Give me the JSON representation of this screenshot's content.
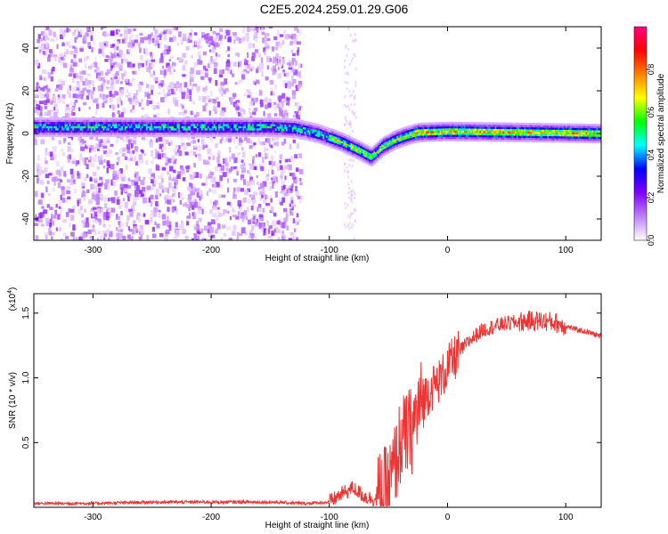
{
  "title": "C2E5.2024.259.01.29.G06",
  "chart_data": [
    {
      "type": "heatmap",
      "xlabel": "Height of straight line (km)",
      "ylabel": "Frequency (Hz)",
      "xlim": [
        -350,
        130
      ],
      "ylim": [
        -50,
        50
      ],
      "x_ticks": [
        -300,
        -200,
        -100,
        0,
        100
      ],
      "y_ticks": [
        -40,
        -20,
        0,
        20,
        40
      ],
      "colorbar": {
        "label": "Normalized spectral amplitude",
        "range": [
          0,
          1
        ],
        "ticks": [
          0.0,
          0.2,
          0.4,
          0.6,
          0.8
        ],
        "colors": [
          "#ffffff",
          "#c080ff",
          "#7f00ff",
          "#0000ff",
          "#00ffff",
          "#00ff00",
          "#ffff00",
          "#ff8000",
          "#ff0000",
          "#ff0080"
        ]
      },
      "ridge": [
        {
          "x": -350,
          "y": 3
        },
        {
          "x": -250,
          "y": 3
        },
        {
          "x": -150,
          "y": 3
        },
        {
          "x": -130,
          "y": 2.5
        },
        {
          "x": -110,
          "y": 0
        },
        {
          "x": -90,
          "y": -4
        },
        {
          "x": -75,
          "y": -8
        },
        {
          "x": -65,
          "y": -11
        },
        {
          "x": -55,
          "y": -6
        },
        {
          "x": -45,
          "y": -3
        },
        {
          "x": -35,
          "y": -1
        },
        {
          "x": -25,
          "y": 0.5
        },
        {
          "x": 0,
          "y": 1
        },
        {
          "x": 130,
          "y": 0
        }
      ]
    },
    {
      "type": "line",
      "xlabel": "Height of straight line (km)",
      "ylabel": "SNR (10 * v/v)",
      "y_multiplier": "(x10",
      "y_multiplier_exp": "4",
      "y_multiplier_close": ")",
      "xlim": [
        -350,
        130
      ],
      "ylim": [
        0,
        1.65
      ],
      "x_ticks": [
        -300,
        -200,
        -100,
        0,
        100
      ],
      "y_ticks": [
        0.5,
        1.0,
        1.5
      ],
      "y_tick_labels": [
        "0.5",
        "1.0",
        "1.5"
      ],
      "line_color": "#ee3333",
      "series": [
        {
          "x": [
            -350,
            -300,
            -250,
            -200,
            -150,
            -120,
            -100,
            -90,
            -80,
            -70,
            -60,
            -50,
            -45,
            -40,
            -35,
            -30,
            -25,
            -20,
            -15,
            -10,
            -5,
            0,
            10,
            20,
            30,
            40,
            50,
            60,
            70,
            80,
            90,
            100,
            110,
            120,
            130
          ],
          "y": [
            0.03,
            0.03,
            0.04,
            0.04,
            0.04,
            0.03,
            0.04,
            0.1,
            0.15,
            0.08,
            0.06,
            0.15,
            0.3,
            0.5,
            0.55,
            0.6,
            0.75,
            0.85,
            0.9,
            0.95,
            1.0,
            1.08,
            1.2,
            1.3,
            1.37,
            1.4,
            1.42,
            1.43,
            1.44,
            1.44,
            1.43,
            1.4,
            1.37,
            1.35,
            1.32
          ]
        }
      ]
    }
  ]
}
